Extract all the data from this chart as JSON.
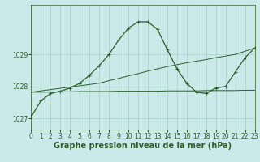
{
  "hours": [
    0,
    1,
    2,
    3,
    4,
    5,
    6,
    7,
    8,
    9,
    10,
    11,
    12,
    13,
    14,
    15,
    16,
    17,
    18,
    19,
    20,
    21,
    22,
    23
  ],
  "line_main": [
    1027.05,
    1027.55,
    1027.78,
    1027.85,
    1027.95,
    1028.1,
    1028.35,
    1028.65,
    1029.0,
    1029.45,
    1029.82,
    1030.02,
    1030.02,
    1029.78,
    1029.15,
    1028.55,
    1028.1,
    1027.82,
    1027.78,
    1027.95,
    1028.0,
    1028.45,
    1028.9,
    1029.2
  ],
  "line_slope": [
    1027.82,
    1027.86,
    1027.9,
    1027.94,
    1027.98,
    1028.02,
    1028.06,
    1028.1,
    1028.18,
    1028.25,
    1028.33,
    1028.4,
    1028.48,
    1028.55,
    1028.62,
    1028.68,
    1028.74,
    1028.79,
    1028.84,
    1028.9,
    1028.95,
    1029.0,
    1029.1,
    1029.2
  ],
  "line_flat": [
    1027.82,
    1027.82,
    1027.82,
    1027.83,
    1027.83,
    1027.84,
    1027.84,
    1027.84,
    1027.84,
    1027.85,
    1027.85,
    1027.85,
    1027.85,
    1027.85,
    1027.86,
    1027.86,
    1027.86,
    1027.86,
    1027.87,
    1027.87,
    1027.87,
    1027.87,
    1027.88,
    1027.88
  ],
  "ylim": [
    1026.65,
    1030.55
  ],
  "yticks": [
    1027,
    1028,
    1029
  ],
  "xlim": [
    0,
    23
  ],
  "xticks": [
    0,
    1,
    2,
    3,
    4,
    5,
    6,
    7,
    8,
    9,
    10,
    11,
    12,
    13,
    14,
    15,
    16,
    17,
    18,
    19,
    20,
    21,
    22,
    23
  ],
  "line_color": "#2a5f2a",
  "bg_color": "#cce9e9",
  "grid_color": "#99ccbb",
  "xlabel": "Graphe pression niveau de la mer (hPa)",
  "xlabel_fontsize": 7,
  "tick_fontsize": 5.5
}
